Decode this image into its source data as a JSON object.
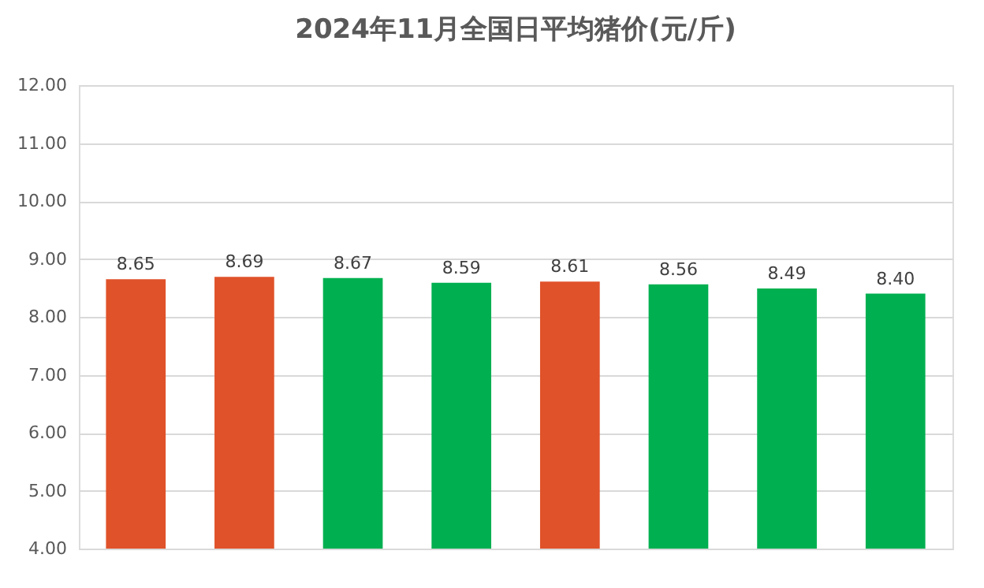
{
  "chart_data": {
    "type": "bar",
    "title": "2024年11月全国日平均猪价(元/斤)",
    "categories": [
      null,
      null,
      null,
      null,
      null,
      null,
      null,
      null
    ],
    "values": [
      8.65,
      8.69,
      8.67,
      8.59,
      8.61,
      8.56,
      8.49,
      8.4
    ],
    "colors": [
      "#e0522a",
      "#e0522a",
      "#00b050",
      "#00b050",
      "#e0522a",
      "#00b050",
      "#00b050",
      "#00b050"
    ],
    "value_labels": [
      "8.65",
      "8.69",
      "8.67",
      "8.59",
      "8.61",
      "8.56",
      "8.49",
      "8.40"
    ],
    "ylim": [
      4,
      12
    ],
    "yticks": [
      {
        "value": 4,
        "label": "4.00"
      },
      {
        "value": 5,
        "label": "5.00"
      },
      {
        "value": 6,
        "label": "6.00"
      },
      {
        "value": 7,
        "label": "7.00"
      },
      {
        "value": 8,
        "label": "8.00"
      },
      {
        "value": 9,
        "label": "9.00"
      },
      {
        "value": 10,
        "label": "10.00"
      },
      {
        "value": 11,
        "label": "11.00"
      },
      {
        "value": 12,
        "label": "12.00"
      }
    ],
    "grid": "y",
    "tick_labels": "y"
  }
}
